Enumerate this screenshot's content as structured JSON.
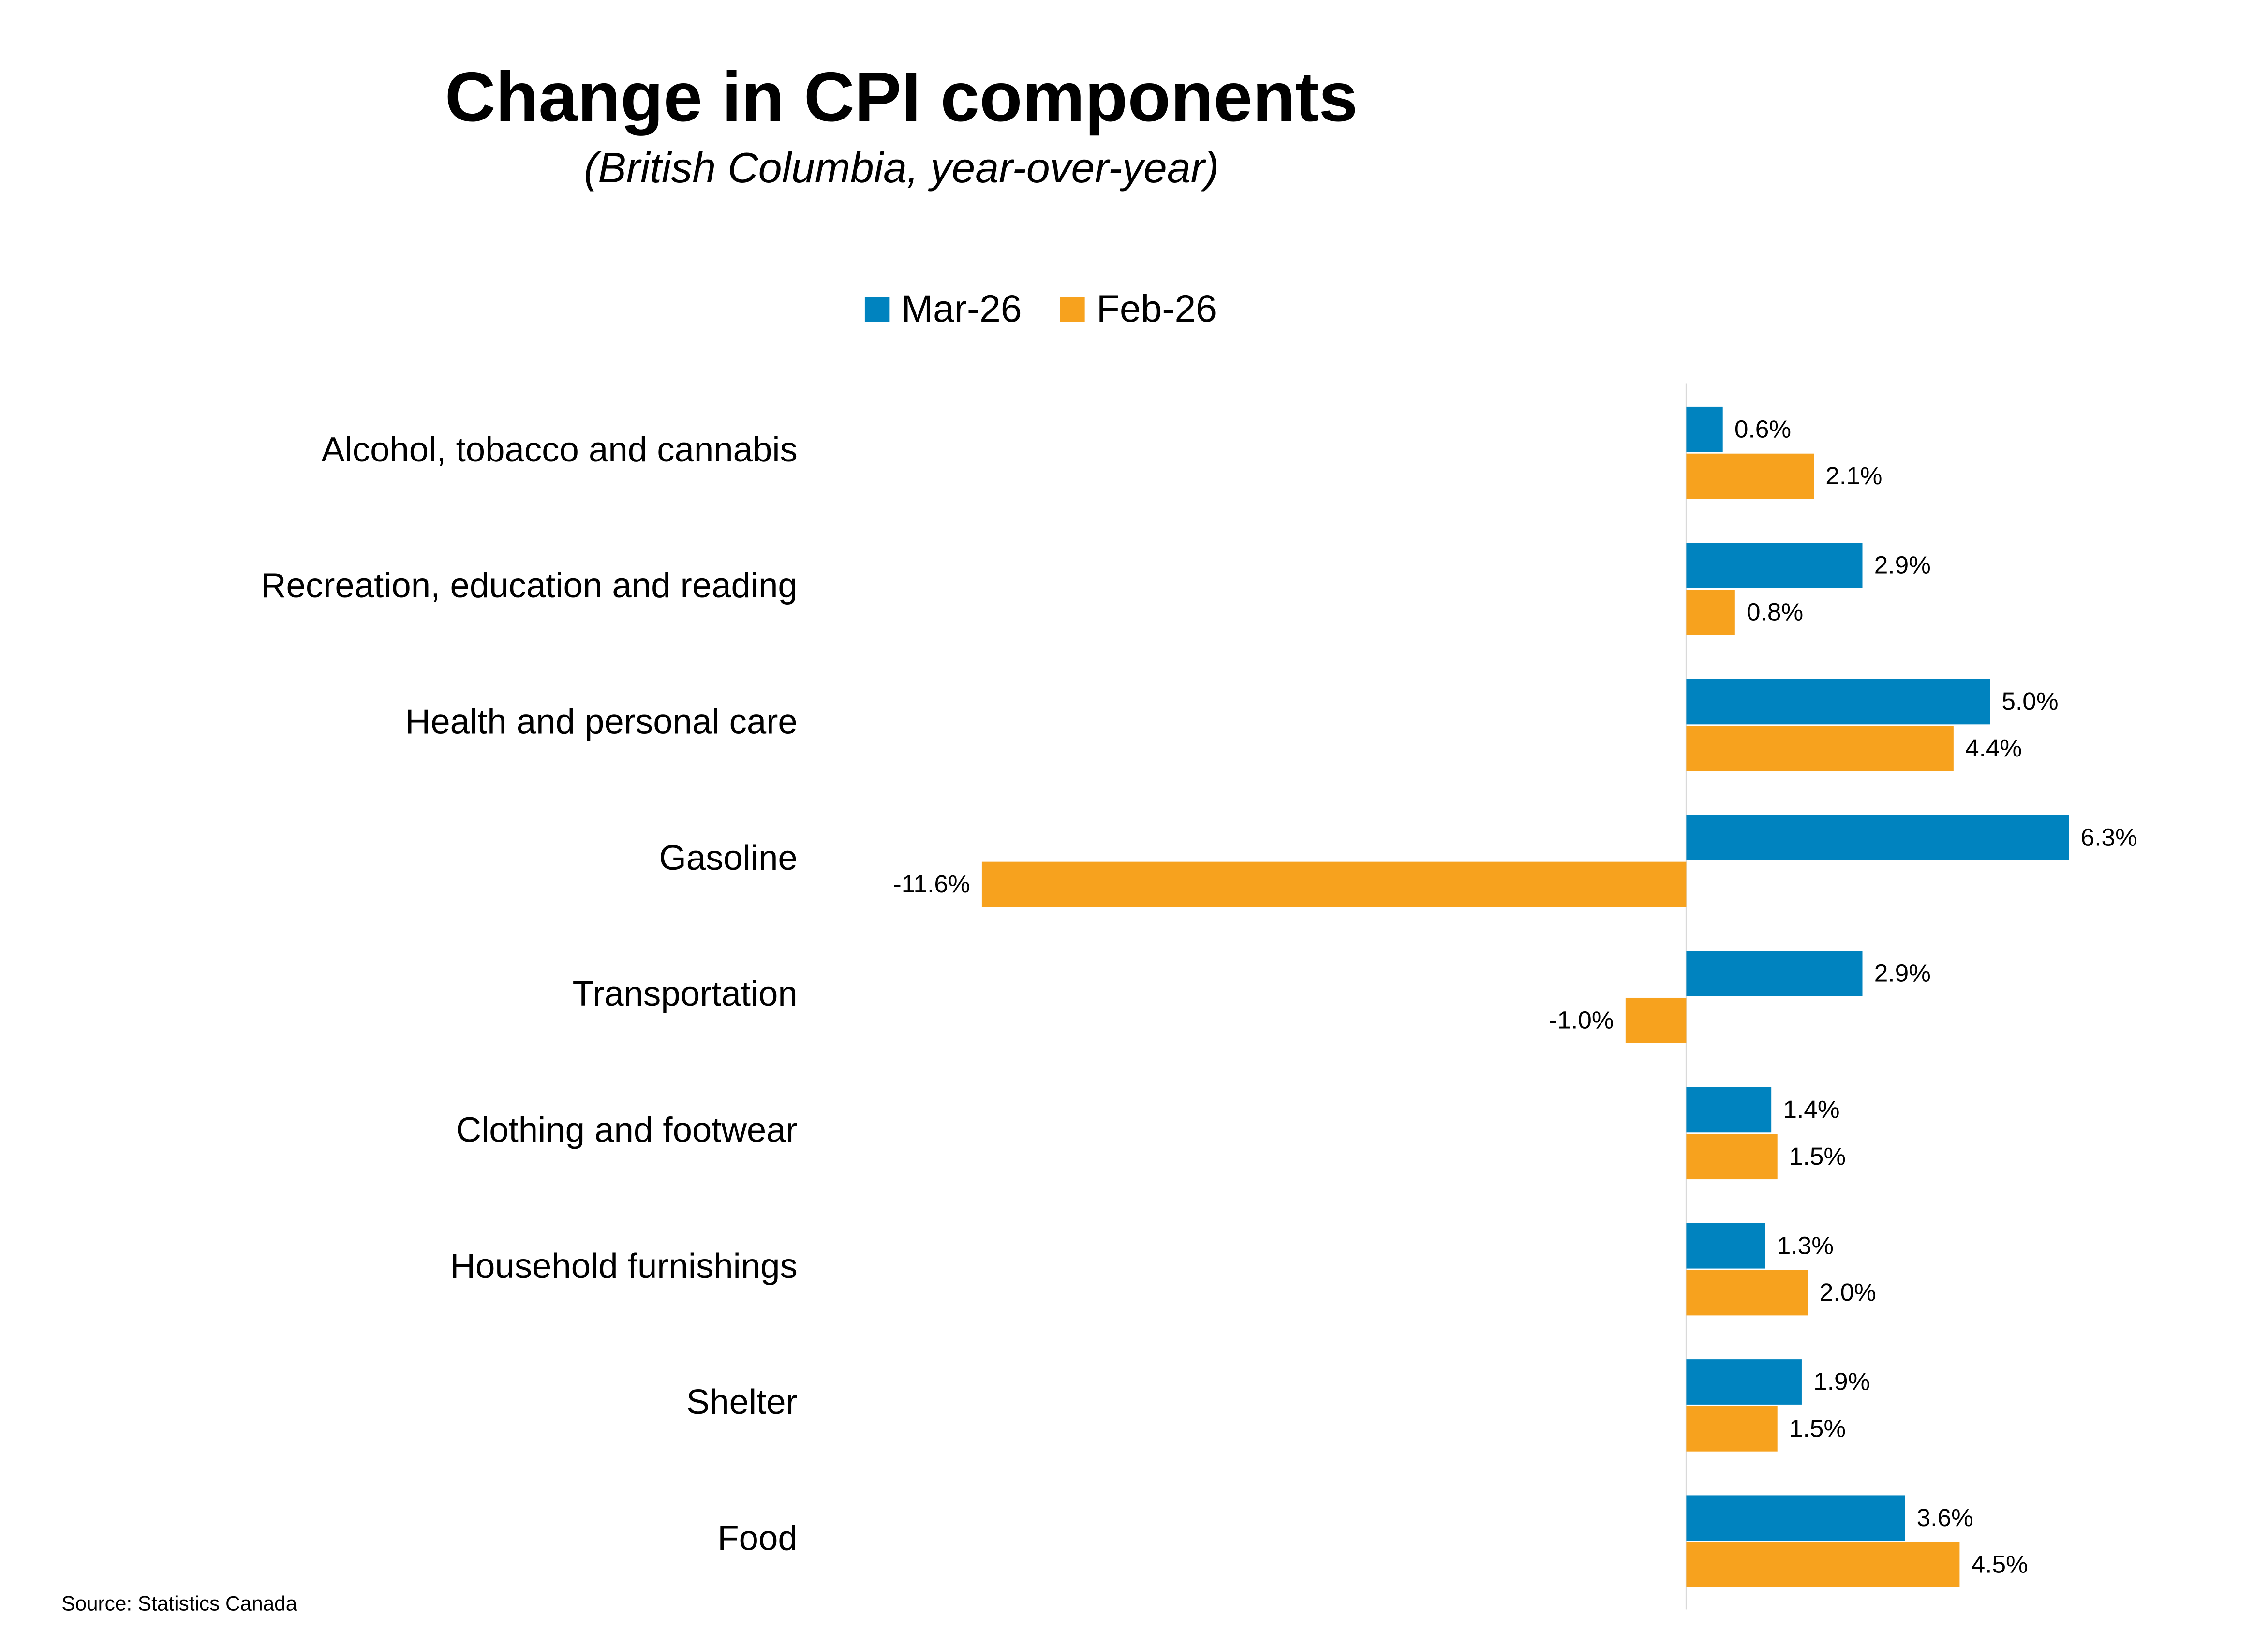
{
  "chart_data": {
    "type": "bar",
    "orientation": "horizontal",
    "title": "Change in CPI components",
    "subtitle": "(British Columbia, year-over-year)",
    "source": "Source: Statistics Canada",
    "categories": [
      "Alcohol, tobacco and cannabis",
      "Recreation, education and reading",
      "Health and personal care",
      "Gasoline",
      "Transportation",
      "Clothing and footwear",
      "Household furnishings",
      "Shelter",
      "Food"
    ],
    "series": [
      {
        "name": "Mar-26",
        "color": "#0083bf",
        "values": [
          0.6,
          2.9,
          5.0,
          6.3,
          2.9,
          1.4,
          1.3,
          1.9,
          3.6
        ],
        "value_labels": [
          "0.6%",
          "2.9%",
          "5.0%",
          "6.3%",
          "2.9%",
          "1.4%",
          "1.3%",
          "1.9%",
          "3.6%"
        ]
      },
      {
        "name": "Feb-26",
        "color": "#f7a21e",
        "values": [
          2.1,
          0.8,
          4.4,
          -11.6,
          -1.0,
          1.5,
          2.0,
          1.5,
          4.5
        ],
        "value_labels": [
          "2.1%",
          "0.8%",
          "4.4%",
          "-11.6%",
          "-1.0%",
          "1.5%",
          "2.0%",
          "1.5%",
          "4.5%"
        ]
      }
    ],
    "legend": "top"
  }
}
